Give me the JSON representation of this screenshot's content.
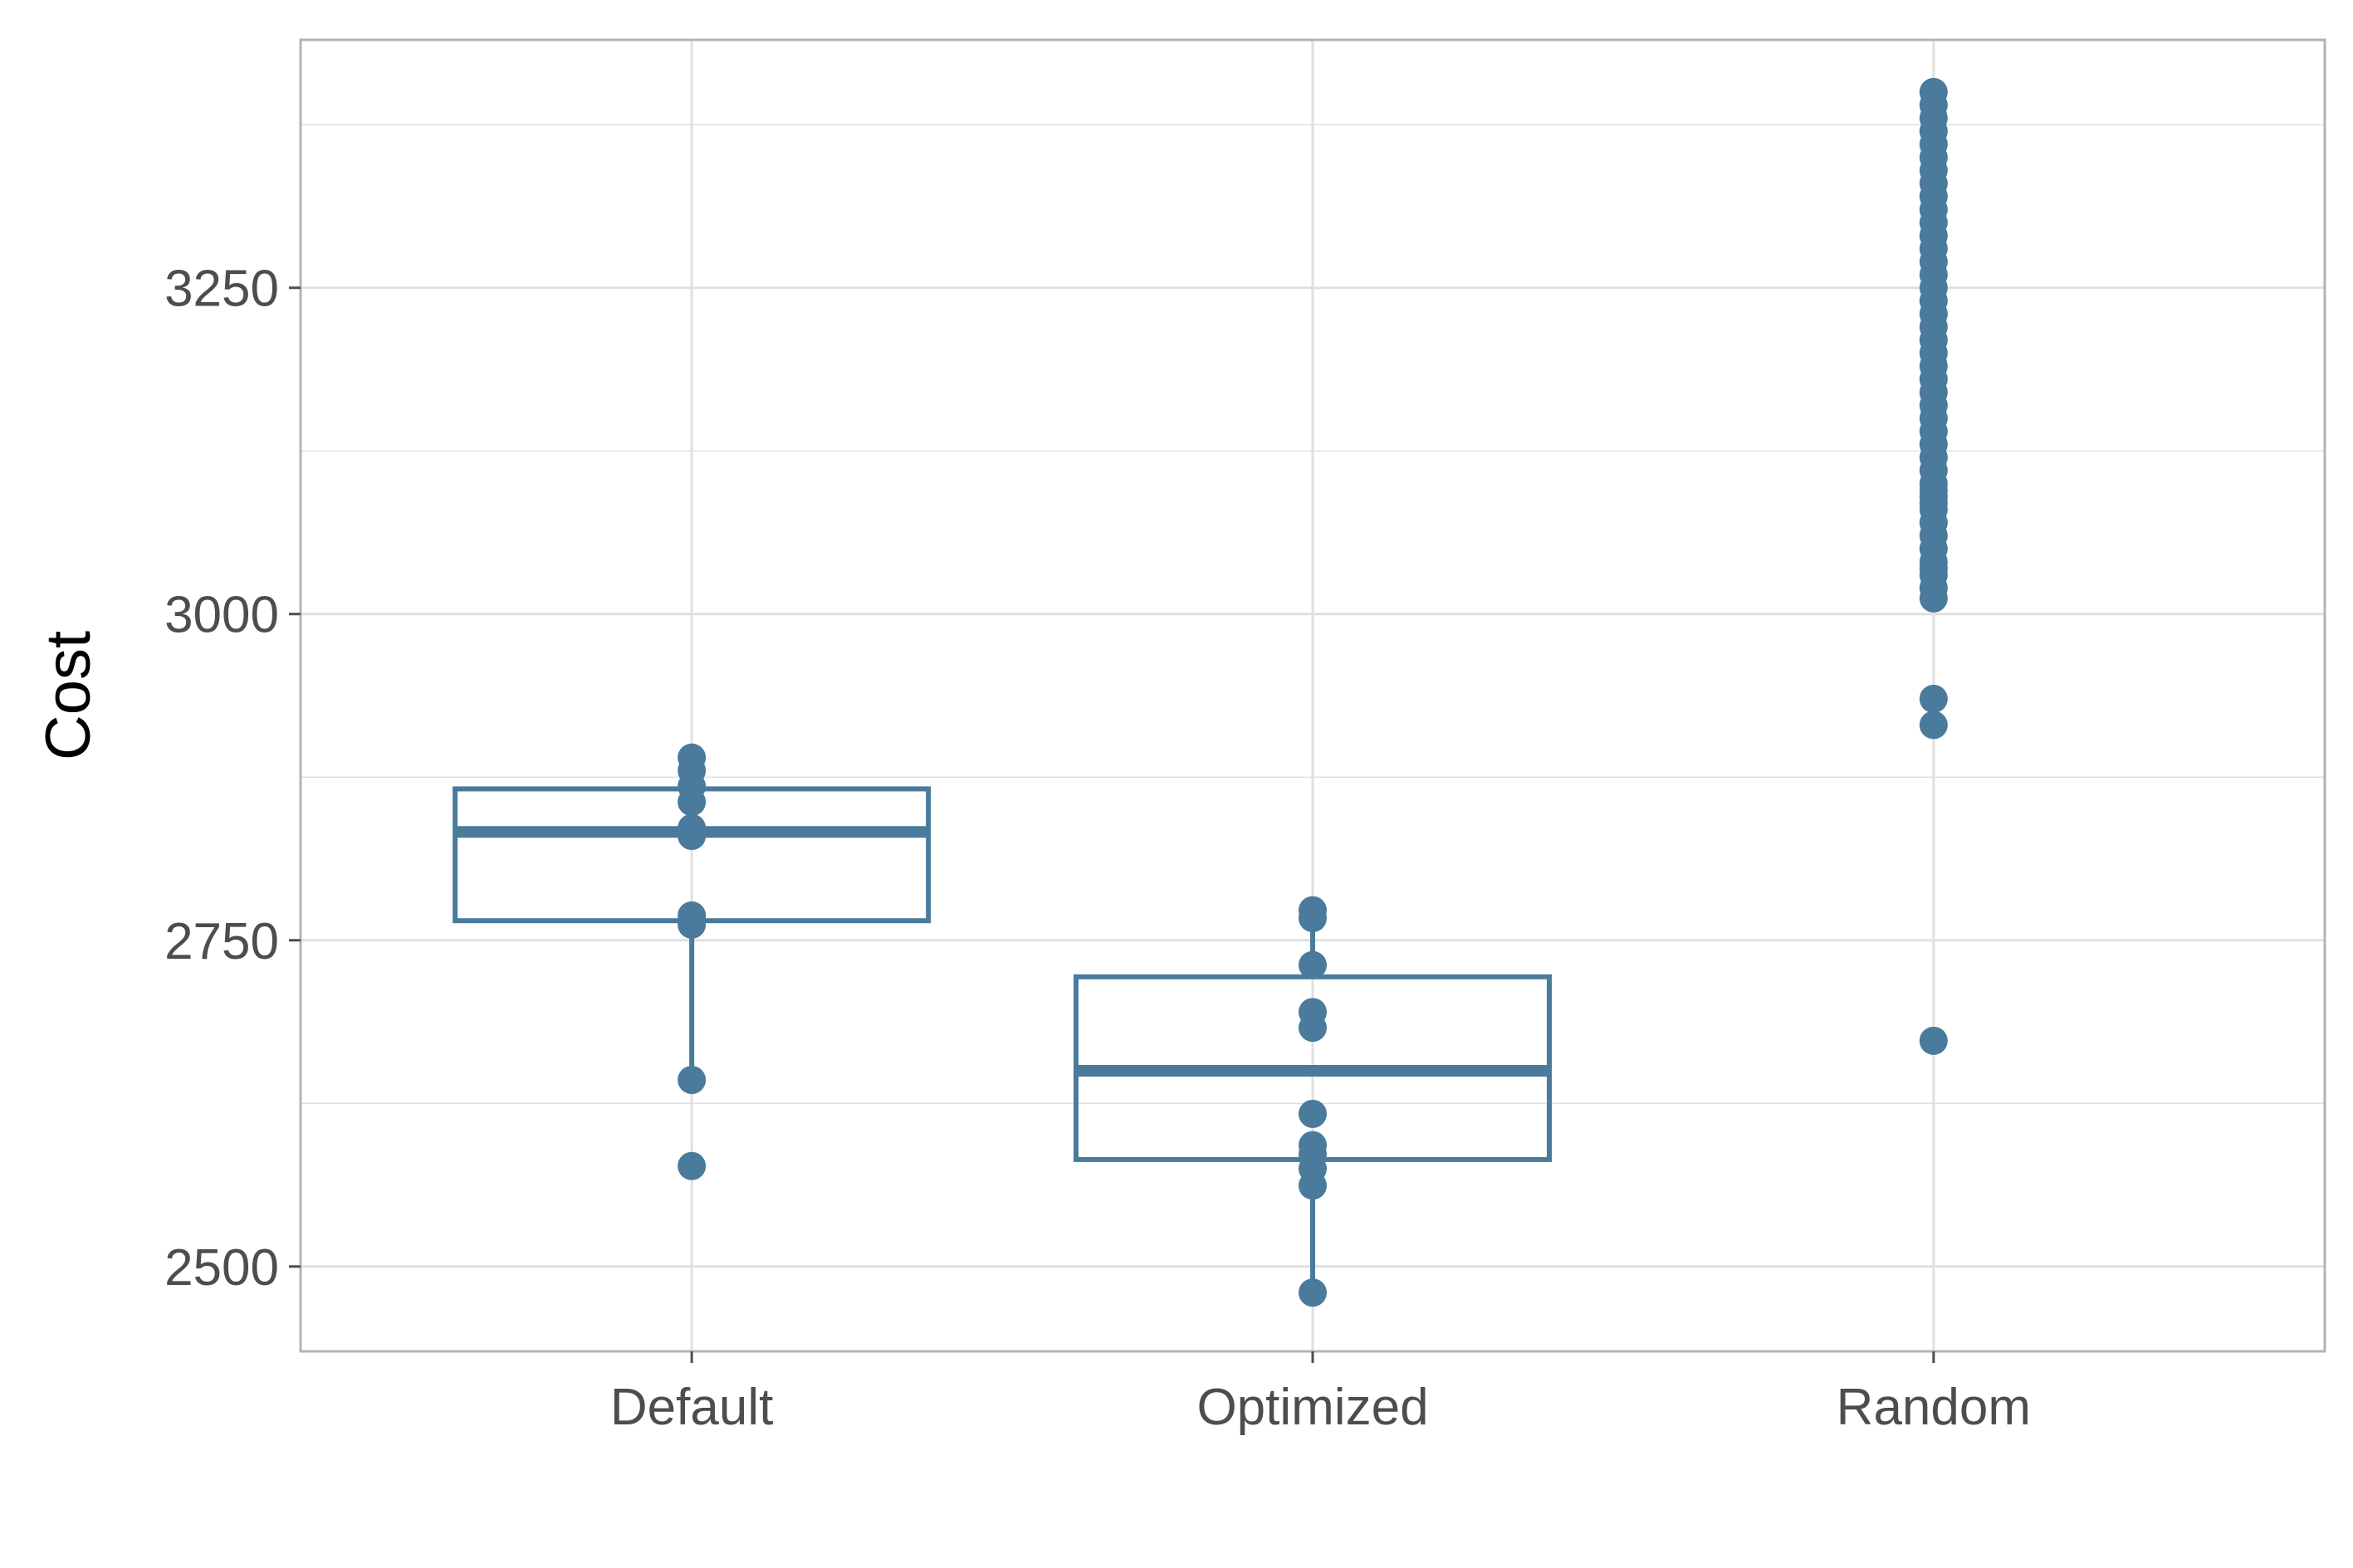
{
  "chart_data": {
    "type": "box",
    "xlabel": "",
    "ylabel": "Cost",
    "ylim": [
      2435,
      3440
    ],
    "yticks": [
      2500,
      2750,
      3000,
      3250
    ],
    "grid": true,
    "colors": {
      "series": "#4a7a9c",
      "grid": "#e0e0e0",
      "panel_border": "#b3b3b3",
      "tick_text": "#4d4d4d"
    },
    "categories": [
      "Default",
      "Optimized",
      "Random"
    ],
    "boxes": [
      {
        "category": "Default",
        "q1": 2765,
        "median": 2833,
        "q3": 2866,
        "whisker_low": 2643,
        "whisker_high": 2866,
        "points": [
          2890,
          2880,
          2868,
          2856,
          2836,
          2830,
          2769,
          2766,
          2762,
          2643,
          2577
        ]
      },
      {
        "category": "Optimized",
        "q1": 2582,
        "median": 2650,
        "q3": 2722,
        "whisker_low": 2480,
        "whisker_high": 2773,
        "points": [
          2773,
          2767,
          2731,
          2695,
          2683,
          2617,
          2593,
          2586,
          2575,
          2562,
          2480
        ]
      },
      {
        "category": "Random",
        "q1": null,
        "median": null,
        "q3": null,
        "whisker_low": null,
        "whisker_high": null,
        "points": [
          3400,
          3390,
          3380,
          3370,
          3360,
          3350,
          3340,
          3330,
          3320,
          3310,
          3300,
          3290,
          3280,
          3270,
          3260,
          3250,
          3240,
          3230,
          3220,
          3210,
          3200,
          3190,
          3180,
          3170,
          3160,
          3150,
          3140,
          3130,
          3120,
          3110,
          3100,
          3095,
          3090,
          3085,
          3080,
          3070,
          3060,
          3050,
          3040,
          3035,
          3030,
          3020,
          3012,
          2935,
          2915,
          2673
        ]
      }
    ]
  }
}
